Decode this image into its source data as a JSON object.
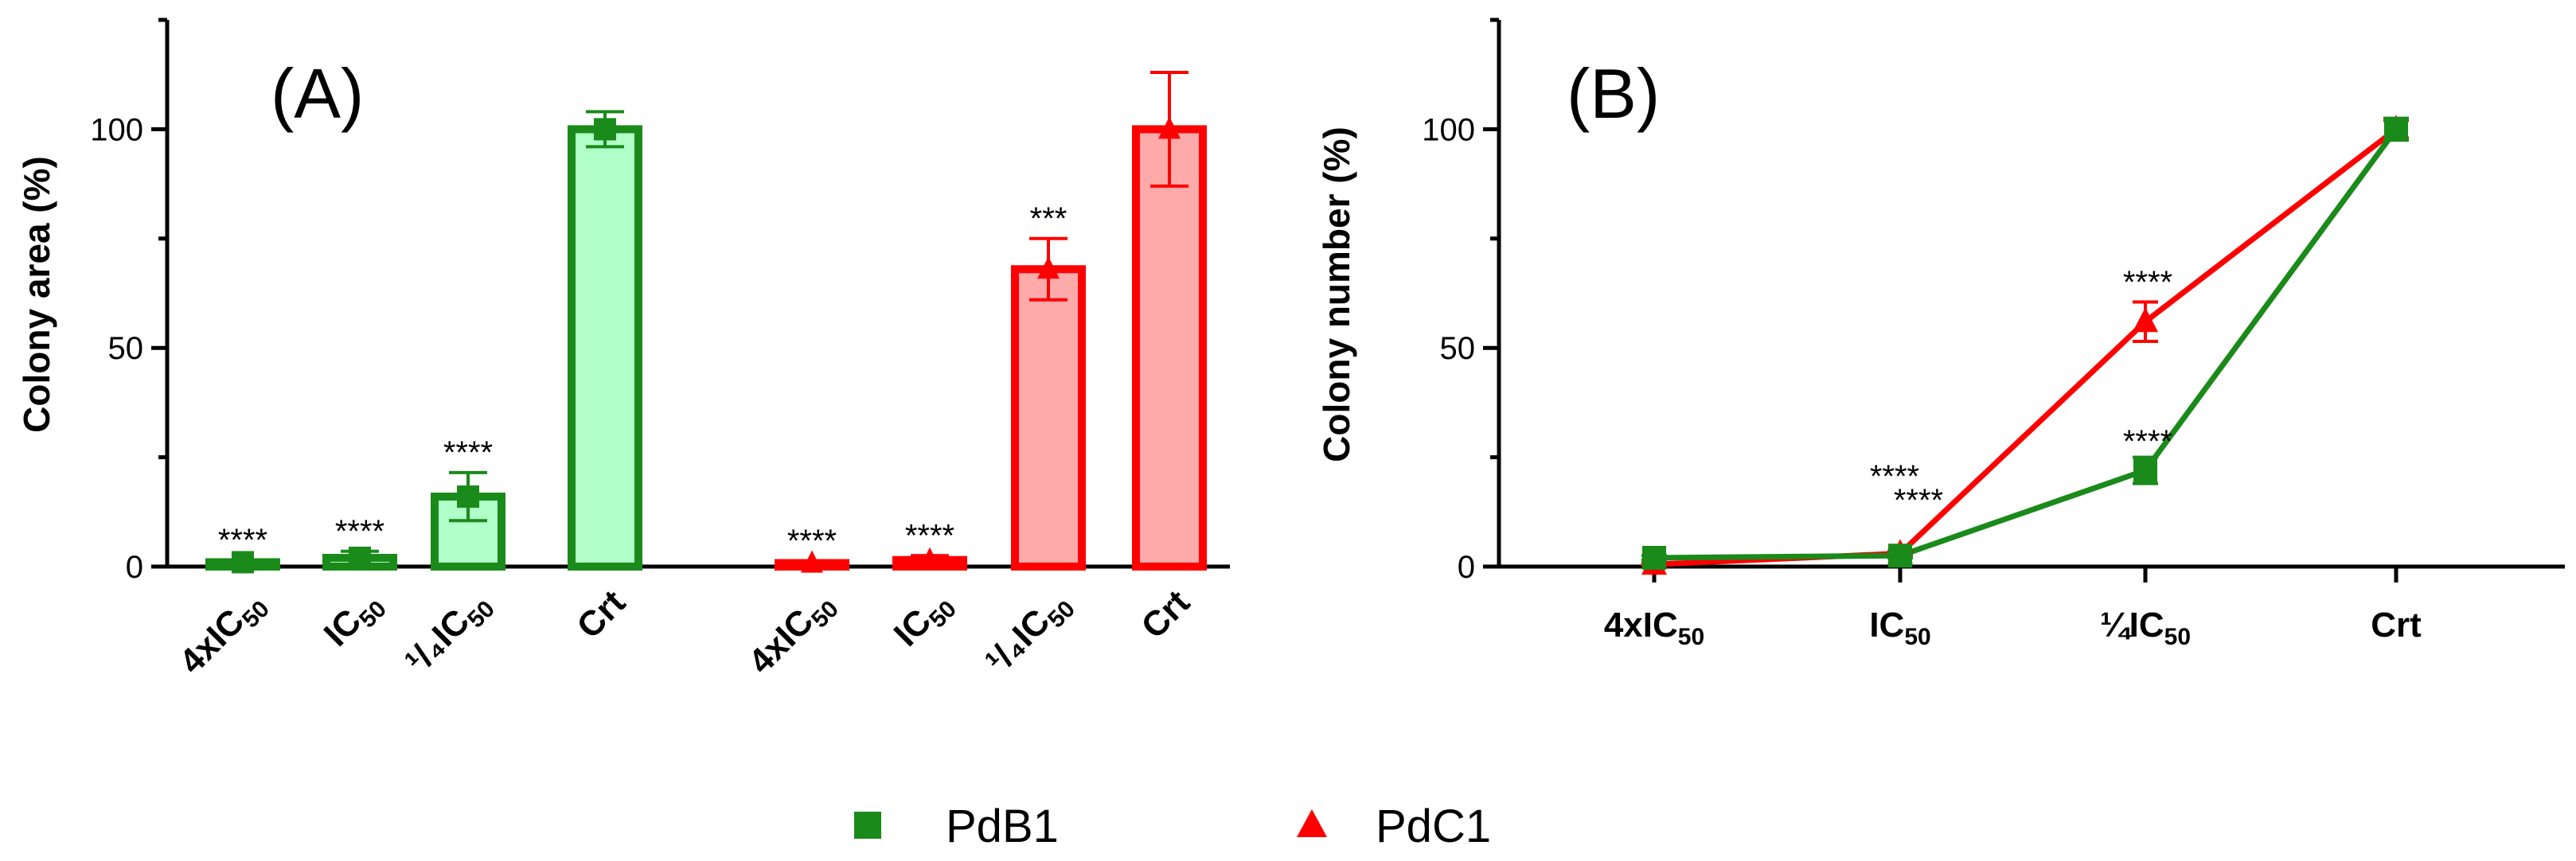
{
  "figure": {
    "legend": [
      {
        "name": "PdB1",
        "marker": "square",
        "color": "#1a8a1a"
      },
      {
        "name": "PdC1",
        "marker": "triangle",
        "color": "#ff0000"
      }
    ]
  },
  "chart_data": [
    {
      "type": "bar",
      "panel_label": "(A)",
      "title": "",
      "xlabel": "",
      "ylabel": "Colony area (%)",
      "ylim": [
        0,
        125
      ],
      "yticks": [
        "0",
        "50",
        "100"
      ],
      "categories": [
        {
          "main": "4xIC",
          "sub": "50"
        },
        {
          "main": "IC",
          "sub": "50"
        },
        {
          "main": "¹/₄IC",
          "sub": "50"
        },
        {
          "main": "Crt",
          "sub": ""
        }
      ],
      "series": [
        {
          "name": "PdB1",
          "color": "#1a8a1a",
          "fill": "#b0ffc8",
          "values": [
            1,
            2,
            16,
            100
          ],
          "errors": [
            0.5,
            1.5,
            5.5,
            4
          ],
          "annotations": [
            "****",
            "****",
            "****",
            ""
          ]
        },
        {
          "name": "PdC1",
          "color": "#ff0000",
          "fill": "#ffaaaa",
          "values": [
            0.8,
            1.5,
            68,
            100
          ],
          "errors": [
            0.5,
            1,
            7,
            13
          ],
          "annotations": [
            "****",
            "****",
            "***",
            ""
          ]
        }
      ]
    },
    {
      "type": "line",
      "panel_label": "(B)",
      "title": "",
      "xlabel": "",
      "ylabel": "Colony number (%)",
      "ylim": [
        0,
        125
      ],
      "yticks": [
        "0",
        "50",
        "100"
      ],
      "categories": [
        {
          "main": "4xIC",
          "sub": "50"
        },
        {
          "main": "IC",
          "sub": "50"
        },
        {
          "main": "¼IC",
          "sub": "50"
        },
        {
          "main": "Crt",
          "sub": ""
        }
      ],
      "series": [
        {
          "name": "PdB1",
          "color": "#1a8a1a",
          "marker": "square",
          "values": [
            2,
            2.5,
            22,
            100
          ],
          "errors": [
            0.5,
            0.5,
            3,
            2.5
          ],
          "annotations": [
            "",
            "****",
            "****",
            ""
          ]
        },
        {
          "name": "PdC1",
          "color": "#ff0000",
          "marker": "triangle",
          "values": [
            0.5,
            3,
            56,
            100
          ],
          "errors": [
            0.3,
            0.5,
            4.5,
            2
          ],
          "annotations": [
            "",
            "****",
            "****",
            ""
          ]
        }
      ]
    }
  ]
}
